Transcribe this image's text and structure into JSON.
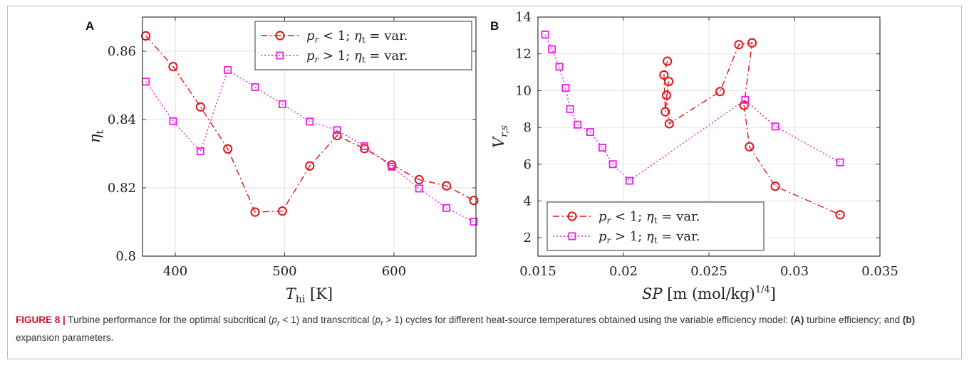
{
  "chart_data": [
    {
      "type": "line",
      "panel": "A",
      "xlabel_main": "T",
      "xlabel_sub": "hi",
      "xlabel_unit": "[K]",
      "ylabel_main": "η",
      "ylabel_sub": "t",
      "xlim": [
        370,
        675
      ],
      "ylim": [
        0.8,
        0.87
      ],
      "xticks": [
        "400",
        "500",
        "600"
      ],
      "xtick_values": [
        400,
        500,
        600
      ],
      "yticks": [
        "0.8",
        "0.82",
        "0.84",
        "0.86"
      ],
      "ytick_values": [
        0.8,
        0.82,
        0.84,
        0.86
      ],
      "grid": true,
      "legend_position": "top-right",
      "series": [
        {
          "name": "p_r < 1;  η_t = var.",
          "marker": "circle",
          "line": "dash-dot",
          "color": "#e0141c",
          "x": [
            373,
            398,
            423,
            448,
            473,
            498,
            523,
            548,
            573,
            598,
            623,
            648,
            673
          ],
          "y": [
            0.8645,
            0.8555,
            0.8437,
            0.8314,
            0.8129,
            0.8132,
            0.8264,
            0.8353,
            0.8315,
            0.8267,
            0.8224,
            0.8206,
            0.8163
          ]
        },
        {
          "name": "p_r > 1;  η_t = var.",
          "marker": "square",
          "line": "dotted",
          "color": "#ee1ee6",
          "x": [
            373,
            398,
            423,
            448,
            473,
            498,
            523,
            548,
            573,
            598,
            623,
            648,
            673
          ],
          "y": [
            0.8511,
            0.8395,
            0.8307,
            0.8545,
            0.8495,
            0.8445,
            0.8394,
            0.8369,
            0.8322,
            0.8262,
            0.8198,
            0.8141,
            0.8101
          ]
        }
      ]
    },
    {
      "type": "line",
      "panel": "B",
      "xlabel_main": "SP",
      "xlabel_unit": "[m (mol/kg)",
      "xlabel_exp": "1/4",
      "xlabel_end": "]",
      "ylabel_main": "V",
      "ylabel_sub": "r,s",
      "xlim": [
        0.015,
        0.035
      ],
      "ylim": [
        1,
        14
      ],
      "xticks": [
        "0.015",
        "0.02",
        "0.025",
        "0.03",
        "0.035"
      ],
      "xtick_values": [
        0.015,
        0.02,
        0.025,
        0.03,
        0.035
      ],
      "yticks": [
        "2",
        "4",
        "6",
        "8",
        "10",
        "12",
        "14"
      ],
      "ytick_values": [
        2,
        4,
        6,
        8,
        10,
        12,
        14
      ],
      "grid": true,
      "legend_position": "bottom-left",
      "series": [
        {
          "name": "p_r < 1;  η_t = var.",
          "marker": "circle",
          "line": "dash-dot",
          "color": "#e0141c",
          "x": [
            0.02257,
            0.02237,
            0.02245,
            0.02265,
            0.02252,
            0.02268,
            0.02565,
            0.02675,
            0.02752,
            0.02705,
            0.02737,
            0.02888,
            0.03267
          ],
          "y": [
            11.6,
            10.85,
            8.85,
            10.5,
            9.75,
            8.2,
            9.95,
            12.5,
            12.6,
            9.2,
            6.95,
            4.8,
            3.25
          ]
        },
        {
          "name": "p_r > 1;  η_t = var.",
          "marker": "square",
          "line": "dotted",
          "color": "#ee1ee6",
          "x": [
            0.01542,
            0.01582,
            0.01625,
            0.01662,
            0.01688,
            0.01732,
            0.01805,
            0.01877,
            0.01938,
            0.02035,
            0.02712,
            0.02888,
            0.03267
          ],
          "y": [
            13.05,
            12.25,
            11.3,
            10.15,
            9.0,
            8.15,
            7.75,
            6.9,
            6.0,
            5.1,
            9.5,
            8.05,
            6.1
          ]
        }
      ]
    }
  ],
  "caption": {
    "label": "FIGURE 8 |",
    "text1": " Turbine performance for the optimal subcritical (",
    "sym": "p",
    "sub": "r",
    "text2": " < 1) and transcritical (",
    "text3": " > 1) cycles for different heat-source temperatures obtained using the variable efficiency model: ",
    "bold_a": "(A)",
    "text4": " turbine efficiency; and ",
    "bold_b": "(b)",
    "text5": " expansion parameters."
  },
  "colors": {
    "subcritical": "#e0141c",
    "transcritical": "#ee1ee6",
    "grid": "#e2e2e2",
    "caption_label": "#c8102e"
  }
}
